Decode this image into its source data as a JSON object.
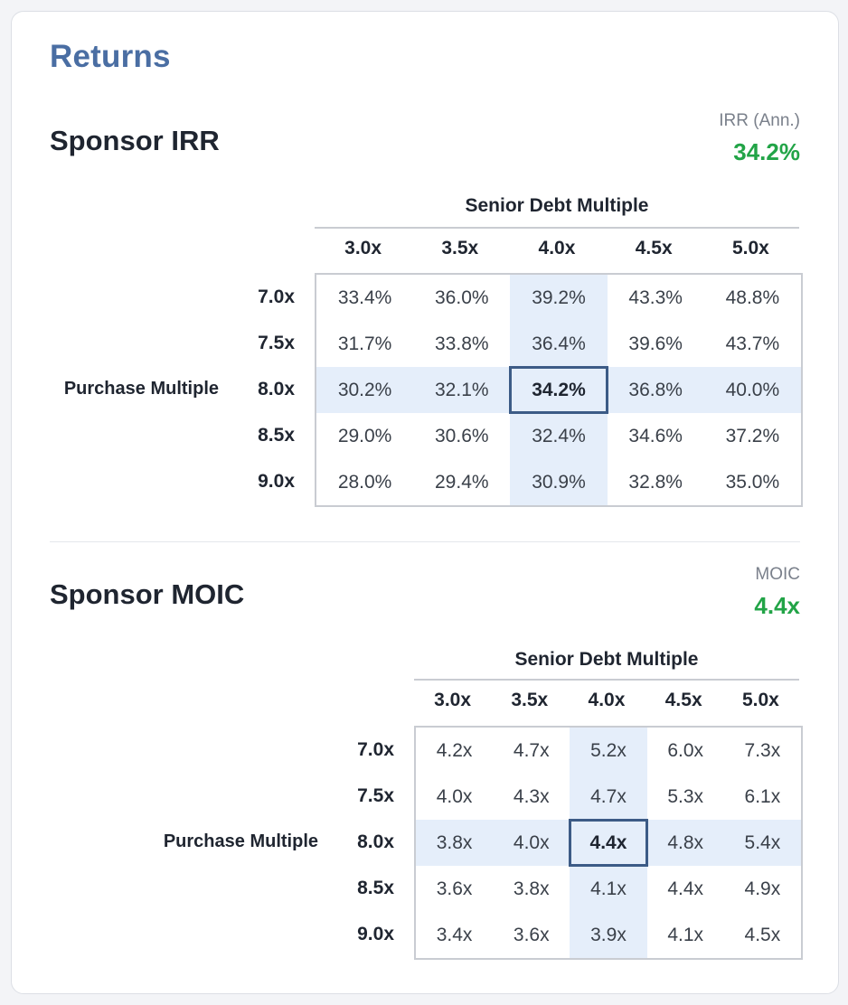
{
  "card": {
    "title": "Returns"
  },
  "sections": [
    {
      "title": "Sponsor IRR",
      "metric_label": "IRR (Ann.)",
      "metric_value": "34.2%",
      "col_group_label": "Senior Debt Multiple",
      "row_group_label": "Purchase Multiple",
      "col_headers": [
        "3.0x",
        "3.5x",
        "4.0x",
        "4.5x",
        "5.0x"
      ],
      "row_headers": [
        "7.0x",
        "7.5x",
        "8.0x",
        "8.5x",
        "9.0x"
      ],
      "rows": [
        [
          "33.4%",
          "36.0%",
          "39.2%",
          "43.3%",
          "48.8%"
        ],
        [
          "31.7%",
          "33.8%",
          "36.4%",
          "39.6%",
          "43.7%"
        ],
        [
          "30.2%",
          "32.1%",
          "34.2%",
          "36.8%",
          "40.0%"
        ],
        [
          "29.0%",
          "30.6%",
          "32.4%",
          "34.6%",
          "37.2%"
        ],
        [
          "28.0%",
          "29.4%",
          "30.9%",
          "32.8%",
          "35.0%"
        ]
      ],
      "base_row_index": 2,
      "base_col_index": 2
    },
    {
      "title": "Sponsor MOIC",
      "metric_label": "MOIC",
      "metric_value": "4.4x",
      "col_group_label": "Senior Debt Multiple",
      "row_group_label": "Purchase Multiple",
      "col_headers": [
        "3.0x",
        "3.5x",
        "4.0x",
        "4.5x",
        "5.0x"
      ],
      "row_headers": [
        "7.0x",
        "7.5x",
        "8.0x",
        "8.5x",
        "9.0x"
      ],
      "rows": [
        [
          "4.2x",
          "4.7x",
          "5.2x",
          "6.0x",
          "7.3x"
        ],
        [
          "4.0x",
          "4.3x",
          "4.7x",
          "5.3x",
          "6.1x"
        ],
        [
          "3.8x",
          "4.0x",
          "4.4x",
          "4.8x",
          "5.4x"
        ],
        [
          "3.6x",
          "3.8x",
          "4.1x",
          "4.4x",
          "4.9x"
        ],
        [
          "3.4x",
          "3.6x",
          "3.9x",
          "4.1x",
          "4.5x"
        ]
      ],
      "base_row_index": 2,
      "base_col_index": 2
    }
  ],
  "colors": {
    "accent_title": "#4a6ea3",
    "metric_green": "#22a447",
    "highlight_band": "#e5eefa",
    "base_cell_border": "#3c5b86"
  }
}
